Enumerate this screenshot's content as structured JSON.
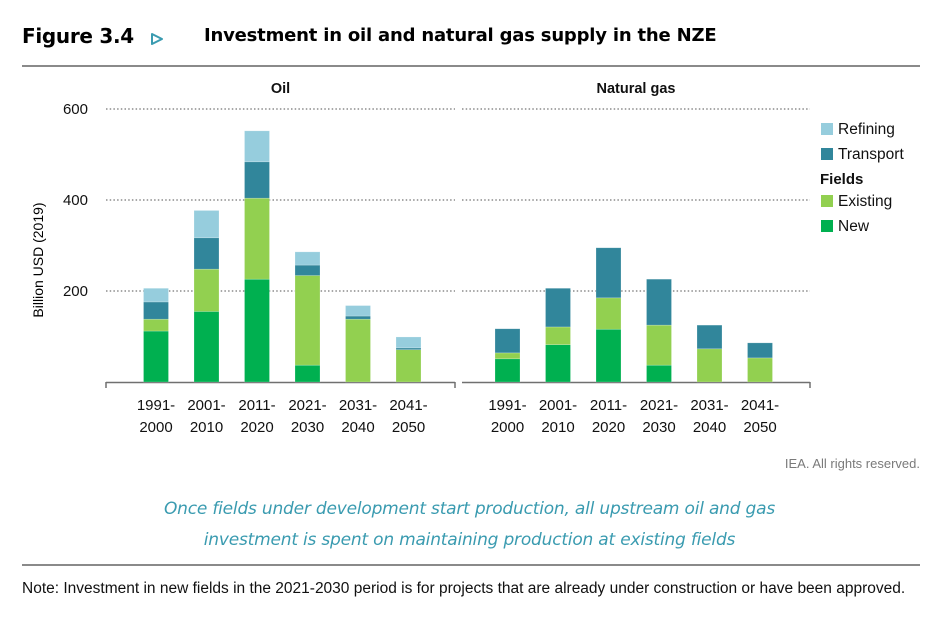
{
  "figure": {
    "number": "Figure 3.4",
    "arrow_icon": "triangle-right-outline-icon",
    "title": "Investment in oil and natural gas supply in the NZE",
    "credit": "IEA. All rights reserved.",
    "caption_line1": "Once fields under development start production, all upstream oil and gas",
    "caption_line2": "investment is spent on maintaining production at existing fields",
    "note": "Note: Investment in new fields in the 2021-2030 period is for projects that are already under construction or have been approved.",
    "accent_color": "#3a9bb0"
  },
  "chart_data": {
    "type": "bar",
    "stacked": true,
    "ylabel": "Billion USD (2019)",
    "ylim": [
      0,
      600
    ],
    "yticks": [
      200,
      400,
      600
    ],
    "grid": true,
    "legend_position": "right",
    "legend": [
      {
        "name": "Refining",
        "color": "#96cddd"
      },
      {
        "name": "Transport",
        "color": "#31869b"
      },
      {
        "heading": "Fields"
      },
      {
        "name": "Existing",
        "color": "#92d050"
      },
      {
        "name": "New",
        "color": "#00b050"
      }
    ],
    "categories": [
      {
        "line1": "1991-",
        "line2": "2000"
      },
      {
        "line1": "2001-",
        "line2": "2010"
      },
      {
        "line1": "2011-",
        "line2": "2020"
      },
      {
        "line1": "2021-",
        "line2": "2030"
      },
      {
        "line1": "2031-",
        "line2": "2040"
      },
      {
        "line1": "2041-",
        "line2": "2050"
      }
    ],
    "panels": [
      {
        "title": "Oil",
        "series": [
          {
            "name": "New",
            "color": "#00b050",
            "values": [
              112,
              155,
              226,
              37,
              0,
              0
            ]
          },
          {
            "name": "Existing",
            "color": "#92d050",
            "values": [
              26,
              93,
              178,
              197,
              138,
              71
            ]
          },
          {
            "name": "Transport",
            "color": "#31869b",
            "values": [
              38,
              69,
              80,
              23,
              7,
              4
            ]
          },
          {
            "name": "Refining",
            "color": "#96cddd",
            "values": [
              30,
              60,
              68,
              29,
              23,
              24
            ]
          }
        ]
      },
      {
        "title": "Natural gas",
        "series": [
          {
            "name": "New",
            "color": "#00b050",
            "values": [
              51,
              82,
              116,
              37,
              0,
              0
            ]
          },
          {
            "name": "Existing",
            "color": "#92d050",
            "values": [
              13,
              39,
              69,
              88,
              73,
              53
            ]
          },
          {
            "name": "Transport",
            "color": "#31869b",
            "values": [
              53,
              85,
              110,
              101,
              52,
              33
            ]
          },
          {
            "name": "Refining",
            "color": "#96cddd",
            "values": [
              0,
              0,
              0,
              0,
              0,
              0
            ]
          }
        ]
      }
    ]
  }
}
